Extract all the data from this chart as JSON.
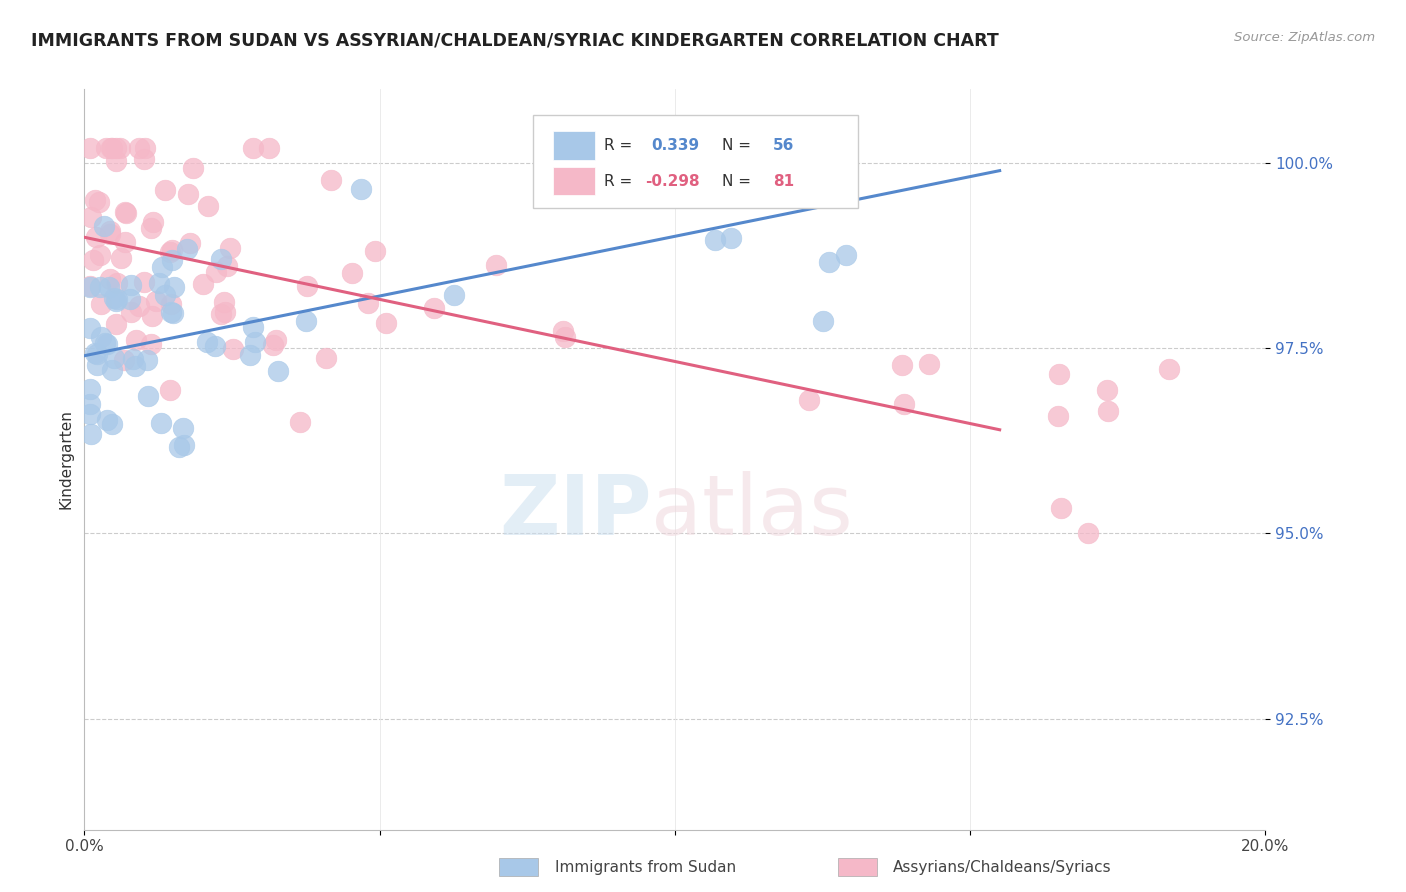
{
  "title": "IMMIGRANTS FROM SUDAN VS ASSYRIAN/CHALDEAN/SYRIAC KINDERGARTEN CORRELATION CHART",
  "source": "Source: ZipAtlas.com",
  "ylabel": "Kindergarten",
  "ytick_labels": [
    "92.5%",
    "95.0%",
    "97.5%",
    "100.0%"
  ],
  "ytick_values": [
    0.925,
    0.95,
    0.975,
    1.0
  ],
  "ylim": [
    0.91,
    1.01
  ],
  "xlim": [
    0.0,
    0.2
  ],
  "blue_color": "#a8c8e8",
  "pink_color": "#f5b8c8",
  "blue_line_color": "#5588cc",
  "pink_line_color": "#e06080",
  "blue_line_x0": 0.0,
  "blue_line_x1": 0.155,
  "blue_line_y0": 0.974,
  "blue_line_y1": 0.999,
  "pink_line_x0": 0.0,
  "pink_line_x1": 0.155,
  "pink_line_y0": 0.99,
  "pink_line_y1": 0.964
}
